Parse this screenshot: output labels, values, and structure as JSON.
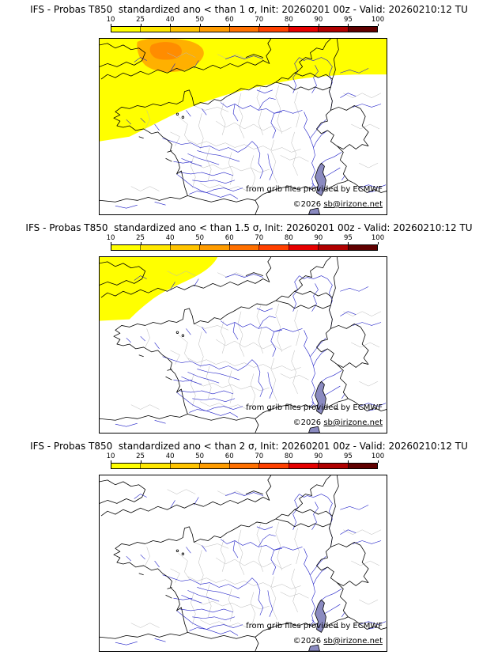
{
  "colorbar": {
    "ticks": [
      "10",
      "25",
      "40",
      "50",
      "60",
      "70",
      "80",
      "90",
      "95",
      "100"
    ],
    "colors": [
      "#ffff00",
      "#ffe800",
      "#ffc400",
      "#ff9c00",
      "#ff7000",
      "#ff4000",
      "#e60000",
      "#b00000",
      "#600000"
    ]
  },
  "credits": {
    "line1": "from grib files provided by ECMWF",
    "prefix": "©2026 ",
    "link": "sb@irizone.net"
  },
  "panels": [
    {
      "title": "IFS - Probas T850  standardized ano < than 1 σ, Init: 20260201 00z - Valid: 20260210:12 TU"
    },
    {
      "title": "IFS - Probas T850  standardized ano < than 1.5 σ, Init: 20260201 00z - Valid: 20260210:12 TU"
    },
    {
      "title": "IFS - Probas T850  standardized ano < than 2 σ, Init: 20260201 00z - Valid: 20260210:12 TU"
    }
  ]
}
